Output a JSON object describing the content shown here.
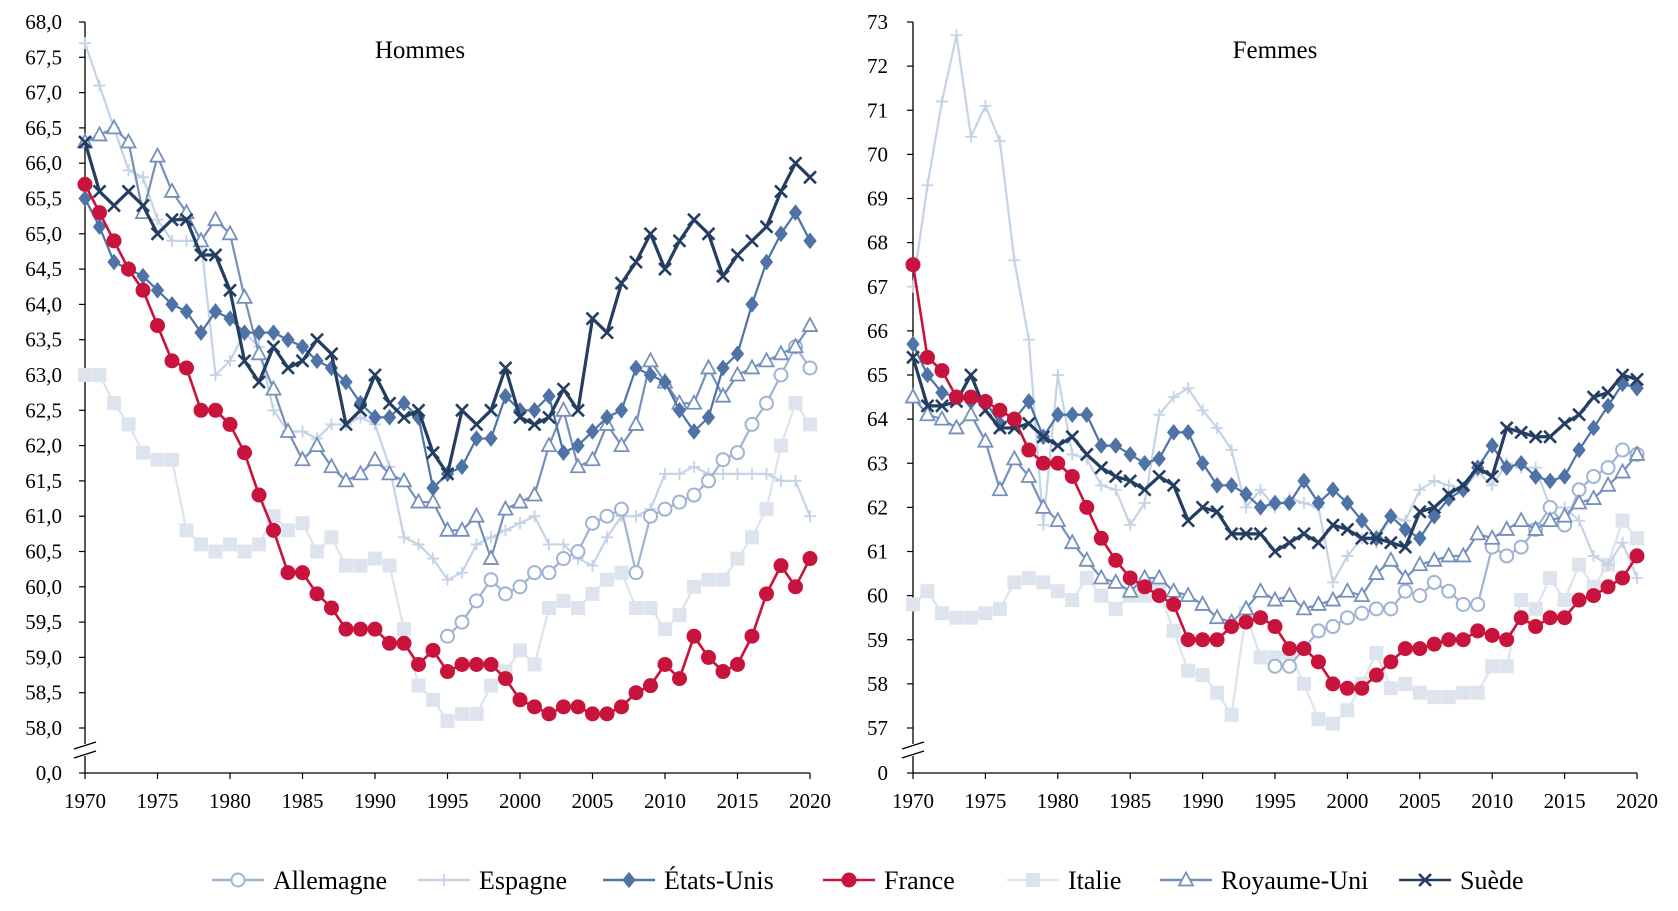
{
  "legend": [
    "Allemagne",
    "Espagne",
    "États-Unis",
    "France",
    "Italie",
    "Royaume-Uni",
    "Suède"
  ],
  "chart_data": [
    {
      "type": "line",
      "title": "Hommes",
      "xlabel": "",
      "ylabel": "",
      "xlim": [
        1970,
        2020
      ],
      "ylim": [
        58.0,
        68.0
      ],
      "axis_break": "between 0,0 and 58,0",
      "xticks": [
        "1970",
        "1975",
        "1980",
        "1985",
        "1990",
        "1995",
        "2000",
        "2005",
        "2010",
        "2015",
        "2020"
      ],
      "yticks": [
        "0,0",
        "58,0",
        "58,5",
        "59,0",
        "59,5",
        "60,0",
        "60,5",
        "61,0",
        "61,5",
        "62,0",
        "62,5",
        "63,0",
        "63,5",
        "64,0",
        "64,5",
        "65,0",
        "65,5",
        "66,0",
        "66,5",
        "67,0",
        "67,5",
        "68,0"
      ],
      "grid": false,
      "legend_position": "bottom",
      "series": [
        {
          "name": "Allemagne",
          "color": "#9fb4d1",
          "marker": "circle-open",
          "start": 1995,
          "values": [
            59.3,
            59.5,
            59.8,
            60.1,
            59.9,
            60.0,
            60.2,
            60.2,
            60.4,
            60.5,
            60.9,
            61.0,
            61.1,
            60.2,
            61.0,
            61.1,
            61.2,
            61.3,
            61.5,
            61.8,
            61.9,
            62.3,
            62.6,
            63.0,
            63.4,
            63.1
          ]
        },
        {
          "name": "Espagne",
          "color": "#c5d3e6",
          "marker": "plus",
          "start": 1970,
          "values": [
            67.7,
            67.1,
            66.5,
            65.9,
            65.8,
            65.2,
            64.9,
            64.9,
            64.9,
            63.0,
            63.2,
            63.6,
            63.4,
            62.5,
            62.2,
            62.2,
            62.1,
            62.3,
            62.3,
            62.4,
            62.3,
            61.7,
            60.7,
            60.6,
            60.4,
            60.1,
            60.2,
            60.6,
            60.7,
            60.8,
            60.9,
            61.0,
            60.6,
            60.6,
            60.4,
            60.3,
            60.7,
            61.0,
            61.0,
            61.1,
            61.6,
            61.6,
            61.7,
            61.6,
            61.6,
            61.6,
            61.6,
            61.6,
            61.5,
            61.5,
            61.0
          ]
        },
        {
          "name": "États-Unis",
          "color": "#4f73a6",
          "marker": "diamond",
          "start": 1970,
          "values": [
            65.5,
            65.1,
            64.6,
            64.5,
            64.4,
            64.2,
            64.0,
            63.9,
            63.6,
            63.9,
            63.8,
            63.6,
            63.6,
            63.6,
            63.5,
            63.4,
            63.2,
            63.1,
            62.9,
            62.6,
            62.4,
            62.4,
            62.6,
            62.4,
            61.4,
            61.6,
            61.7,
            62.1,
            62.1,
            62.7,
            62.5,
            62.5,
            62.7,
            61.9,
            62.0,
            62.2,
            62.4,
            62.5,
            63.1,
            63.0,
            62.9,
            62.5,
            62.2,
            62.4,
            63.1,
            63.3,
            64.0,
            64.6,
            65.0,
            65.3,
            64.9
          ]
        },
        {
          "name": "France",
          "color": "#c8143c",
          "marker": "circle-filled",
          "start": 1970,
          "values": [
            65.7,
            65.3,
            64.9,
            64.5,
            64.2,
            63.7,
            63.2,
            63.1,
            62.5,
            62.5,
            62.3,
            61.9,
            61.3,
            60.8,
            60.2,
            60.2,
            59.9,
            59.7,
            59.4,
            59.4,
            59.4,
            59.2,
            59.2,
            58.9,
            59.1,
            58.8,
            58.9,
            58.9,
            58.9,
            58.7,
            58.4,
            58.3,
            58.2,
            58.3,
            58.3,
            58.2,
            58.2,
            58.3,
            58.5,
            58.6,
            58.9,
            58.7,
            59.3,
            59.0,
            58.8,
            58.9,
            59.3,
            59.9,
            60.3,
            60.0,
            60.4
          ]
        },
        {
          "name": "Italie",
          "color": "#dde4ee",
          "marker": "square",
          "start": 1970,
          "values": [
            63.0,
            63.0,
            62.6,
            62.3,
            61.9,
            61.8,
            61.8,
            60.8,
            60.6,
            60.5,
            60.6,
            60.5,
            60.6,
            61.0,
            60.8,
            60.9,
            60.5,
            60.7,
            60.3,
            60.3,
            60.4,
            60.3,
            59.4,
            58.6,
            58.4,
            58.1,
            58.2,
            58.2,
            58.6,
            58.8,
            59.1,
            58.9,
            59.7,
            59.8,
            59.7,
            59.9,
            60.1,
            60.2,
            59.7,
            59.7,
            59.4,
            59.6,
            60.0,
            60.1,
            60.1,
            60.4,
            60.7,
            61.1,
            62.0,
            62.6,
            62.3
          ]
        },
        {
          "name": "Royaume-Uni",
          "color": "#7590ba",
          "marker": "triangle-open",
          "start": 1970,
          "values": [
            66.3,
            66.4,
            66.5,
            66.3,
            65.3,
            66.1,
            65.6,
            65.3,
            64.9,
            65.2,
            65.0,
            64.1,
            63.3,
            62.8,
            62.2,
            61.8,
            62.0,
            61.7,
            61.5,
            61.6,
            61.8,
            61.6,
            61.5,
            61.2,
            61.2,
            60.8,
            60.8,
            61.0,
            60.4,
            61.1,
            61.2,
            61.3,
            62.0,
            62.5,
            61.7,
            61.8,
            62.3,
            62.0,
            62.3,
            63.2,
            62.9,
            62.6,
            62.6,
            63.1,
            62.7,
            63.0,
            63.1,
            63.2,
            63.3,
            63.4,
            63.7
          ]
        },
        {
          "name": "Suède",
          "color": "#243e62",
          "marker": "x",
          "start": 1970,
          "values": [
            66.3,
            65.6,
            65.4,
            65.6,
            65.4,
            65.0,
            65.2,
            65.2,
            64.7,
            64.7,
            64.2,
            63.2,
            62.9,
            63.4,
            63.1,
            63.2,
            63.5,
            63.3,
            62.3,
            62.5,
            63.0,
            62.6,
            62.4,
            62.5,
            61.9,
            61.6,
            62.5,
            62.3,
            62.5,
            63.1,
            62.4,
            62.3,
            62.4,
            62.8,
            62.5,
            63.8,
            63.6,
            64.3,
            64.6,
            65.0,
            64.5,
            64.9,
            65.2,
            65.0,
            64.4,
            64.7,
            64.9,
            65.1,
            65.6,
            66.0,
            65.8
          ]
        }
      ]
    },
    {
      "type": "line",
      "title": "Femmes",
      "xlabel": "",
      "ylabel": "",
      "xlim": [
        1970,
        2020
      ],
      "ylim": [
        57,
        73
      ],
      "axis_break": "between 0 and 57",
      "xticks": [
        "1970",
        "1975",
        "1980",
        "1985",
        "1990",
        "1995",
        "2000",
        "2005",
        "2010",
        "2015",
        "2020"
      ],
      "yticks": [
        "0",
        "57",
        "58",
        "59",
        "60",
        "61",
        "62",
        "63",
        "64",
        "65",
        "66",
        "67",
        "68",
        "69",
        "70",
        "71",
        "72",
        "73"
      ],
      "grid": false,
      "legend_position": "bottom",
      "series": [
        {
          "name": "Allemagne",
          "color": "#9fb4d1",
          "marker": "circle-open",
          "start": 1995,
          "values": [
            58.4,
            58.4,
            58.8,
            59.2,
            59.3,
            59.5,
            59.6,
            59.7,
            59.7,
            60.1,
            60.0,
            60.3,
            60.1,
            59.8,
            59.8,
            61.1,
            60.9,
            61.1,
            61.5,
            62.0,
            61.6,
            62.4,
            62.7,
            62.9,
            63.3,
            63.2
          ]
        },
        {
          "name": "Espagne",
          "color": "#c5d3e6",
          "marker": "plus",
          "start": 1970,
          "values": [
            67.0,
            69.3,
            71.2,
            72.7,
            70.4,
            71.1,
            70.3,
            67.6,
            65.8,
            61.6,
            65.0,
            63.2,
            63.1,
            62.5,
            62.4,
            61.6,
            62.1,
            64.1,
            64.5,
            64.7,
            64.2,
            63.8,
            63.3,
            62.0,
            62.4,
            62.0,
            62.2,
            62.1,
            62.0,
            60.3,
            60.9,
            61.3,
            61.2,
            61.8,
            61.7,
            62.4,
            62.6,
            62.5,
            62.4,
            62.8,
            62.5,
            63.0,
            62.9,
            62.9,
            62.0,
            62.0,
            61.7,
            60.9,
            60.7,
            61.2,
            60.4
          ]
        },
        {
          "name": "États-Unis",
          "color": "#4f73a6",
          "marker": "diamond",
          "start": 1970,
          "values": [
            65.7,
            65.0,
            64.6,
            64.5,
            64.4,
            64.4,
            63.9,
            64.0,
            64.4,
            63.6,
            64.1,
            64.1,
            64.1,
            63.4,
            63.4,
            63.2,
            63.0,
            63.1,
            63.7,
            63.7,
            63.0,
            62.5,
            62.5,
            62.3,
            62.0,
            62.1,
            62.1,
            62.6,
            62.1,
            62.4,
            62.1,
            61.7,
            61.3,
            61.8,
            61.5,
            61.3,
            61.8,
            62.2,
            62.4,
            62.9,
            63.4,
            62.9,
            63.0,
            62.7,
            62.6,
            62.7,
            63.3,
            63.8,
            64.3,
            64.8,
            64.7
          ]
        },
        {
          "name": "France",
          "color": "#c8143c",
          "marker": "circle-filled",
          "start": 1970,
          "values": [
            67.5,
            65.4,
            65.1,
            64.5,
            64.5,
            64.4,
            64.2,
            64.0,
            63.3,
            63.0,
            63.0,
            62.7,
            62.0,
            61.3,
            60.8,
            60.4,
            60.2,
            60.0,
            59.8,
            59.0,
            59.0,
            59.0,
            59.3,
            59.4,
            59.5,
            59.3,
            58.8,
            58.8,
            58.5,
            58.0,
            57.9,
            57.9,
            58.2,
            58.5,
            58.8,
            58.8,
            58.9,
            59.0,
            59.0,
            59.2,
            59.1,
            59.0,
            59.5,
            59.3,
            59.5,
            59.5,
            59.9,
            60.0,
            60.2,
            60.4,
            60.9
          ]
        },
        {
          "name": "Italie",
          "color": "#dde4ee",
          "marker": "square",
          "start": 1970,
          "values": [
            59.8,
            60.1,
            59.6,
            59.5,
            59.5,
            59.6,
            59.7,
            60.3,
            60.4,
            60.3,
            60.1,
            59.9,
            60.4,
            60.0,
            59.7,
            60.0,
            60.0,
            60.1,
            59.2,
            58.3,
            58.2,
            57.8,
            57.3,
            59.6,
            58.6,
            58.6,
            58.7,
            58.0,
            57.2,
            57.1,
            57.4,
            58.0,
            58.7,
            57.9,
            58.0,
            57.8,
            57.7,
            57.7,
            57.8,
            57.8,
            58.4,
            58.4,
            59.9,
            59.7,
            60.4,
            59.9,
            60.7,
            60.2,
            60.7,
            61.7,
            61.3
          ]
        },
        {
          "name": "Royaume-Uni",
          "color": "#7590ba",
          "marker": "triangle-open",
          "start": 1970,
          "values": [
            64.5,
            64.1,
            64.0,
            63.8,
            64.1,
            63.5,
            62.4,
            63.1,
            62.7,
            62.0,
            61.7,
            61.2,
            60.8,
            60.4,
            60.3,
            60.1,
            60.4,
            60.4,
            60.1,
            60.0,
            59.8,
            59.5,
            59.4,
            59.7,
            60.1,
            59.9,
            60.0,
            59.7,
            59.8,
            59.9,
            60.1,
            60.0,
            60.5,
            60.8,
            60.4,
            60.7,
            60.8,
            60.9,
            60.9,
            61.4,
            61.3,
            61.5,
            61.7,
            61.5,
            61.7,
            61.8,
            62.1,
            62.2,
            62.5,
            62.8,
            63.2
          ]
        },
        {
          "name": "Suède",
          "color": "#243e62",
          "marker": "x",
          "start": 1970,
          "values": [
            65.4,
            64.3,
            64.3,
            64.4,
            65.0,
            64.2,
            63.8,
            63.8,
            63.9,
            63.6,
            63.4,
            63.6,
            63.2,
            62.9,
            62.7,
            62.6,
            62.4,
            62.7,
            62.5,
            61.7,
            62.0,
            61.9,
            61.4,
            61.4,
            61.4,
            61.0,
            61.2,
            61.4,
            61.2,
            61.6,
            61.5,
            61.3,
            61.3,
            61.2,
            61.1,
            61.9,
            62.0,
            62.3,
            62.5,
            62.9,
            62.7,
            63.8,
            63.7,
            63.6,
            63.6,
            63.9,
            64.1,
            64.5,
            64.6,
            65.0,
            64.9
          ]
        }
      ]
    }
  ]
}
